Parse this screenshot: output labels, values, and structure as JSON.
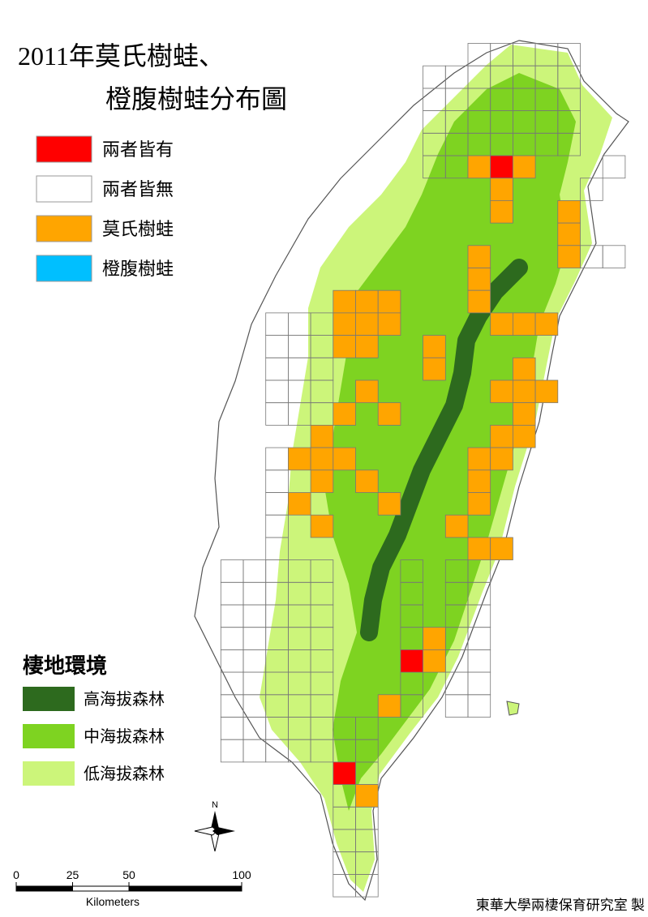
{
  "title": [
    "2011年莫氏樹蛙、",
    "橙腹樹蛙分布圖"
  ],
  "legend": [
    {
      "label": "兩者皆有",
      "color": "#ff0000"
    },
    {
      "label": "兩者皆無",
      "color": "#ffffff"
    },
    {
      "label": "莫氏樹蛙",
      "color": "#ffa500"
    },
    {
      "label": "橙腹樹蛙",
      "color": "#00bfff"
    }
  ],
  "habitat": {
    "title": "棲地環境",
    "items": [
      {
        "label": "高海拔森林",
        "color": "#2d6a1e"
      },
      {
        "label": "中海拔森林",
        "color": "#7ed321"
      },
      {
        "label": "低海拔森林",
        "color": "#ccf57a"
      }
    ]
  },
  "north": "N",
  "scale_bar": {
    "ticks": [
      0,
      25,
      50,
      100
    ],
    "unit": "Kilometers"
  },
  "credit": "東華大學兩棲保育研究室 製"
}
